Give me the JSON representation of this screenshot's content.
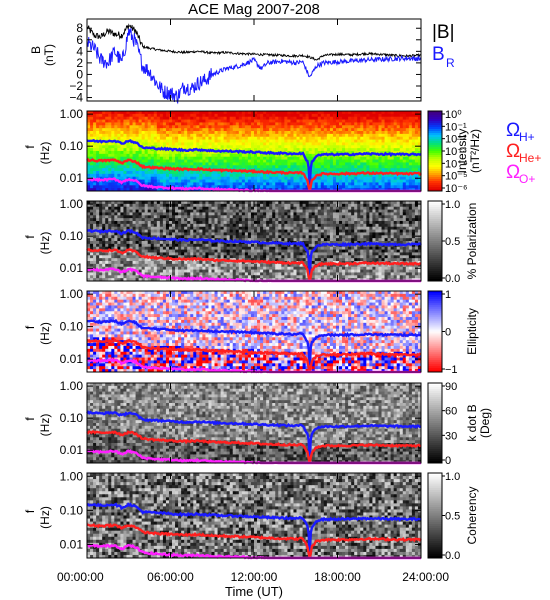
{
  "chart_data": [
    {
      "type": "line",
      "title": "ACE Mag 2007-208",
      "ylabel_main": "B",
      "ylabel_unit": "(nT)",
      "yticks": [
        "8",
        "6",
        "4",
        "2",
        "0",
        "−2",
        "−4"
      ],
      "ytick_values": [
        8,
        6,
        4,
        2,
        0,
        -2,
        -4
      ],
      "ylim": [
        -4.6,
        9.6
      ],
      "xlim": [
        0,
        24
      ],
      "series": [
        {
          "name": "|B|",
          "color": "#000000",
          "x": [
            0,
            0.5,
            1,
            1.5,
            2,
            2.5,
            3,
            3.5,
            4,
            5,
            6,
            7,
            8,
            9,
            10,
            11,
            12,
            13,
            14,
            15,
            15.5,
            16,
            16.5,
            17,
            18,
            19,
            20,
            21,
            22,
            23,
            24
          ],
          "y": [
            8.2,
            6.8,
            6.5,
            7.5,
            7.0,
            6.8,
            8.5,
            7.5,
            4.8,
            4.3,
            4.0,
            3.8,
            4.0,
            3.7,
            3.8,
            3.6,
            3.5,
            3.4,
            3.3,
            3.2,
            3.3,
            3.0,
            2.5,
            3.3,
            3.5,
            3.4,
            3.6,
            3.5,
            3.3,
            3.2,
            3.3
          ]
        },
        {
          "name": "B",
          "subscript": "R",
          "color": "#1a1aff",
          "x": [
            0,
            0.5,
            1,
            1.5,
            2,
            2.5,
            3,
            3.5,
            4,
            4.5,
            5,
            5.5,
            6,
            6.5,
            7,
            7.5,
            8,
            8.5,
            9,
            10,
            11,
            12,
            12.5,
            13,
            14,
            15,
            15.5,
            16,
            16.5,
            17,
            18,
            19,
            20,
            21,
            22,
            23,
            24
          ],
          "y": [
            5.5,
            4.5,
            2.5,
            2.0,
            4.0,
            2.0,
            7.5,
            5.5,
            1.5,
            0.5,
            -1.5,
            -3.0,
            -3.2,
            -3.8,
            -2.0,
            -2.5,
            -1.5,
            -1.0,
            0.0,
            1.0,
            1.5,
            2.5,
            1.0,
            2.0,
            2.3,
            2.0,
            2.2,
            -0.5,
            1.5,
            2.0,
            2.2,
            2.3,
            2.5,
            2.6,
            2.7,
            2.8,
            2.7
          ]
        }
      ]
    },
    {
      "type": "heatmap",
      "ylabel_main": "f",
      "ylabel_unit": "(Hz)",
      "yticks": [
        "1.00",
        "0.10",
        "0.01"
      ],
      "cbar_ticks": [
        "10⁰",
        "10⁻¹",
        "10⁻²",
        "10⁻³",
        "10⁻⁴",
        "10⁻⁵",
        "10⁻⁶"
      ],
      "cbar_label_1": "Intensity",
      "cbar_label_2": "(nT²/Hz)",
      "colormap": [
        "#40007f",
        "#3000c0",
        "#0040ff",
        "#00c0ff",
        "#00e080",
        "#40ff00",
        "#c0ff00",
        "#ffff00",
        "#ffa000",
        "#ff3000",
        "#e00000"
      ],
      "legend": [
        {
          "symbol": "Ω",
          "sub": "H+",
          "color": "#1a1aff"
        },
        {
          "symbol": "Ω",
          "sub": "He+",
          "color": "#ff2020"
        },
        {
          "symbol": "Ω",
          "sub": "O+",
          "color": "#ff20ff"
        }
      ]
    },
    {
      "type": "heatmap",
      "ylabel_main": "f",
      "ylabel_unit": "(Hz)",
      "yticks": [
        "1.00",
        "0.10",
        "0.01"
      ],
      "cbar_ticks": [
        "1.0",
        "0.5",
        "0.0"
      ],
      "cbar_label_1": "% Polarization",
      "colormap": [
        "#ffffff",
        "#000000"
      ]
    },
    {
      "type": "heatmap",
      "ylabel_main": "f",
      "ylabel_unit": "(Hz)",
      "yticks": [
        "1.00",
        "0.10",
        "0.01"
      ],
      "cbar_ticks": [
        "1",
        "0",
        "−1"
      ],
      "cbar_label_1": "Ellipticity",
      "colormap": [
        "#0000ff",
        "#ffffff",
        "#ff0000"
      ]
    },
    {
      "type": "heatmap",
      "ylabel_main": "f",
      "ylabel_unit": "(Hz)",
      "yticks": [
        "1.00",
        "0.10",
        "0.01"
      ],
      "cbar_ticks": [
        "90",
        "60",
        "30",
        "0"
      ],
      "cbar_label_1": "k dot B",
      "cbar_label_2": "(Deg)",
      "colormap": [
        "#ffffff",
        "#000000"
      ]
    },
    {
      "type": "heatmap",
      "ylabel_main": "f",
      "ylabel_unit": "(Hz)",
      "yticks": [
        "1.00",
        "0.10",
        "0.01"
      ],
      "cbar_ticks": [
        "1.0",
        "0.5",
        "0.0"
      ],
      "cbar_label_1": "Coherency",
      "colormap": [
        "#ffffff",
        "#000000"
      ]
    }
  ],
  "gyrofrequency_lines": {
    "x": [
      0,
      1,
      2,
      2.5,
      3,
      3.5,
      4,
      5,
      6,
      7,
      8,
      9,
      10,
      11,
      12,
      13,
      14,
      15,
      15.5,
      15.9,
      16,
      16.1,
      16.5,
      17,
      18,
      19,
      20,
      21,
      22,
      23,
      24
    ],
    "H+": [
      0.15,
      0.14,
      0.15,
      0.12,
      0.15,
      0.13,
      0.09,
      0.085,
      0.08,
      0.075,
      0.078,
      0.072,
      0.07,
      0.068,
      0.065,
      0.062,
      0.06,
      0.058,
      0.06,
      0.03,
      0.006,
      0.03,
      0.05,
      0.055,
      0.055,
      0.056,
      0.058,
      0.057,
      0.056,
      0.055,
      0.056
    ],
    "He+": [
      0.037,
      0.035,
      0.037,
      0.03,
      0.037,
      0.033,
      0.023,
      0.021,
      0.02,
      0.019,
      0.0195,
      0.018,
      0.0175,
      0.017,
      0.0163,
      0.0155,
      0.015,
      0.0145,
      0.015,
      0.008,
      0.0015,
      0.008,
      0.0125,
      0.0138,
      0.0138,
      0.014,
      0.0145,
      0.0143,
      0.014,
      0.0138,
      0.014
    ],
    "O+": [
      0.0094,
      0.0088,
      0.0094,
      0.0075,
      0.0094,
      0.0083,
      0.0058,
      0.0053,
      0.005,
      0.0047,
      0.0049,
      0.0045,
      0.0044,
      0.0043,
      0.0041,
      0.0039,
      0.0038,
      0.0036,
      0.0038,
      0.0036,
      0.0036,
      0.0036,
      0.0035,
      0.0035,
      0.0035,
      0.0035,
      0.0036,
      0.0036,
      0.0035,
      0.0035,
      0.0035
    ]
  },
  "x_axis": {
    "ticks": [
      "00:00:00",
      "06:00:00",
      "12:00:00",
      "18:00:00",
      "24:00:00"
    ],
    "tick_values": [
      0,
      6,
      12,
      18,
      24
    ],
    "label": "Time (UT)"
  }
}
